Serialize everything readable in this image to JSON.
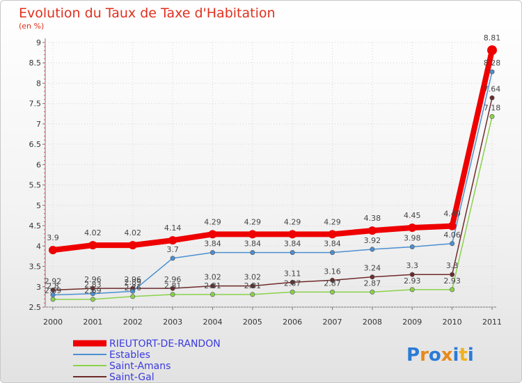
{
  "chart_data": {
    "type": "line",
    "title": "Evolution du Taux de Taxe d'Habitation",
    "subtitle": "(en %)",
    "x": [
      "2000",
      "2001",
      "2002",
      "2003",
      "2004",
      "2005",
      "2006",
      "2007",
      "2008",
      "2009",
      "2010",
      "2011"
    ],
    "ylim": [
      2.5,
      9
    ],
    "yticks": [
      "2.5",
      "3",
      "3.5",
      "4",
      "4.5",
      "5",
      "5.5",
      "6",
      "6.5",
      "7",
      "7.5",
      "8",
      "8.5",
      "9"
    ],
    "legend_position": "bottom-left",
    "series": [
      {
        "name": "RIEUTORT-DE-RANDON",
        "color": "#ee0000",
        "values": [
          3.9,
          4.02,
          4.02,
          4.14,
          4.29,
          4.29,
          4.29,
          4.29,
          4.38,
          4.45,
          4.49,
          8.81
        ],
        "labels": [
          "3.9",
          "4.02",
          "4.02",
          "4.14",
          "4.29",
          "4.29",
          "4.29",
          "4.29",
          "4.38",
          "4.45",
          "4.49",
          "8.81"
        ]
      },
      {
        "name": "Estables",
        "color": "#4a8fd0",
        "values": [
          2.8,
          2.83,
          2.89,
          3.7,
          3.84,
          3.84,
          3.84,
          3.84,
          3.92,
          3.98,
          4.06,
          8.28
        ],
        "labels": [
          "2.8",
          "2.83",
          "2.89",
          "3.7",
          "3.84",
          "3.84",
          "3.84",
          "3.84",
          "3.92",
          "3.98",
          "4.06",
          "8.28"
        ]
      },
      {
        "name": "Saint-Amans",
        "color": "#8ad14a",
        "values": [
          2.69,
          2.69,
          2.76,
          2.81,
          2.81,
          2.81,
          2.87,
          2.87,
          2.87,
          2.93,
          2.93,
          7.18
        ],
        "labels": [
          "2.69",
          "2.69",
          "2.76",
          "2.81",
          "2.81",
          "2.81",
          "2.87",
          "2.87",
          "2.87",
          "2.93",
          "2.93",
          "7.18"
        ]
      },
      {
        "name": "Saint-Gal",
        "color": "#6e2a2a",
        "values": [
          2.92,
          2.96,
          2.96,
          2.96,
          3.02,
          3.02,
          3.11,
          3.16,
          3.24,
          3.3,
          3.3,
          7.64
        ],
        "labels": [
          "2.92",
          "2.96",
          "2.96",
          "2.96",
          "3.02",
          "3.02",
          "3.11",
          "3.16",
          "3.24",
          "3.3",
          "3.3",
          "7.64"
        ]
      }
    ]
  },
  "branding": {
    "logo_text": "Proxiti"
  }
}
